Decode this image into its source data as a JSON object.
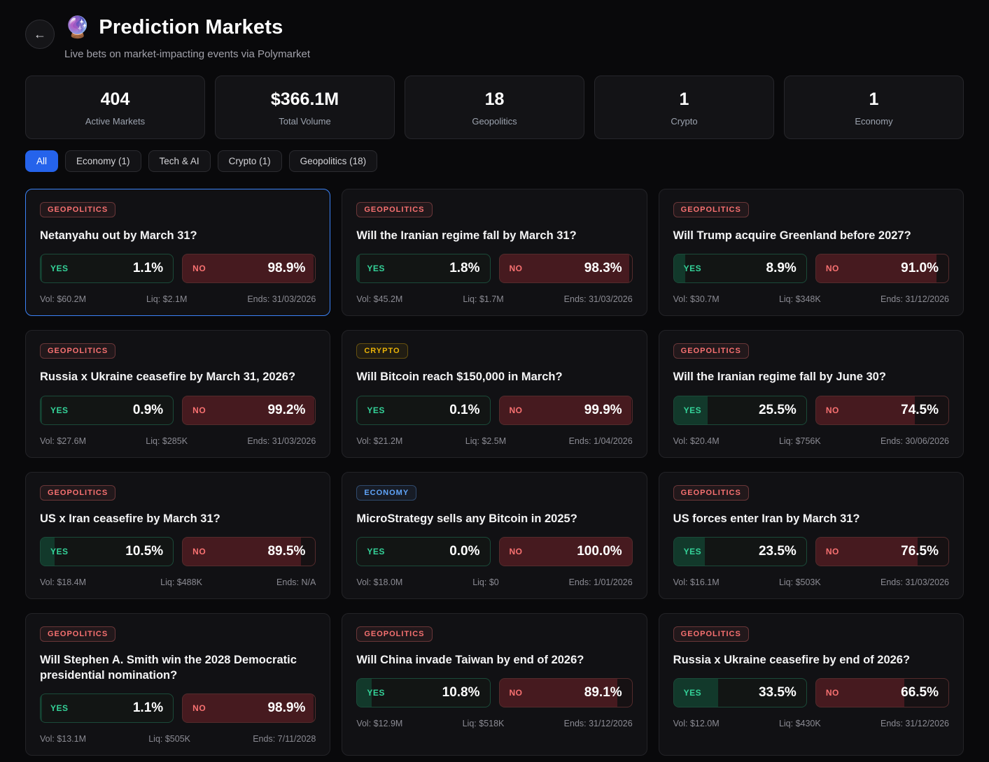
{
  "header": {
    "back_icon": "←",
    "emoji": "🔮",
    "title": "Prediction Markets",
    "subtitle": "Live bets on market-impacting events via Polymarket"
  },
  "stats": [
    {
      "value": "404",
      "label": "Active Markets"
    },
    {
      "value": "$366.1M",
      "label": "Total Volume"
    },
    {
      "value": "18",
      "label": "Geopolitics"
    },
    {
      "value": "1",
      "label": "Crypto"
    },
    {
      "value": "1",
      "label": "Economy"
    }
  ],
  "filters": [
    {
      "label": "All",
      "active": true
    },
    {
      "label": "Economy (1)",
      "active": false
    },
    {
      "label": "Tech & AI",
      "active": false
    },
    {
      "label": "Crypto (1)",
      "active": false
    },
    {
      "label": "Geopolitics (18)",
      "active": false
    }
  ],
  "labels": {
    "yes": "YES",
    "no": "NO"
  },
  "category_colors": {
    "GEOPOLITICS": "#f87171",
    "CRYPTO": "#eab308",
    "ECONOMY": "#60a5fa"
  },
  "accent_colors": {
    "selected_card_border": "#3b82f6",
    "active_filter": "#2563eb",
    "yes": "#34d399",
    "no": "#f87171"
  },
  "markets": [
    {
      "category": "GEOPOLITICS",
      "question": "Netanyahu out by March 31?",
      "yes": "1.1%",
      "no": "98.9%",
      "yes_pct": 1.1,
      "no_pct": 98.9,
      "vol": "Vol: $60.2M",
      "liq": "Liq: $2.1M",
      "ends": "Ends: 31/03/2026",
      "selected": true
    },
    {
      "category": "GEOPOLITICS",
      "question": "Will the Iranian regime fall by March 31?",
      "yes": "1.8%",
      "no": "98.3%",
      "yes_pct": 1.8,
      "no_pct": 98.3,
      "vol": "Vol: $45.2M",
      "liq": "Liq: $1.7M",
      "ends": "Ends: 31/03/2026",
      "selected": false
    },
    {
      "category": "GEOPOLITICS",
      "question": "Will Trump acquire Greenland before 2027?",
      "yes": "8.9%",
      "no": "91.0%",
      "yes_pct": 8.9,
      "no_pct": 91.0,
      "vol": "Vol: $30.7M",
      "liq": "Liq: $348K",
      "ends": "Ends: 31/12/2026",
      "selected": false
    },
    {
      "category": "GEOPOLITICS",
      "question": "Russia x Ukraine ceasefire by March 31, 2026?",
      "yes": "0.9%",
      "no": "99.2%",
      "yes_pct": 0.9,
      "no_pct": 99.2,
      "vol": "Vol: $27.6M",
      "liq": "Liq: $285K",
      "ends": "Ends: 31/03/2026",
      "selected": false
    },
    {
      "category": "CRYPTO",
      "question": "Will Bitcoin reach $150,000 in March?",
      "yes": "0.1%",
      "no": "99.9%",
      "yes_pct": 0.1,
      "no_pct": 99.9,
      "vol": "Vol: $21.2M",
      "liq": "Liq: $2.5M",
      "ends": "Ends: 1/04/2026",
      "selected": false
    },
    {
      "category": "GEOPOLITICS",
      "question": "Will the Iranian regime fall by June 30?",
      "yes": "25.5%",
      "no": "74.5%",
      "yes_pct": 25.5,
      "no_pct": 74.5,
      "vol": "Vol: $20.4M",
      "liq": "Liq: $756K",
      "ends": "Ends: 30/06/2026",
      "selected": false
    },
    {
      "category": "GEOPOLITICS",
      "question": "US x Iran ceasefire by March 31?",
      "yes": "10.5%",
      "no": "89.5%",
      "yes_pct": 10.5,
      "no_pct": 89.5,
      "vol": "Vol: $18.4M",
      "liq": "Liq: $488K",
      "ends": "Ends: N/A",
      "selected": false
    },
    {
      "category": "ECONOMY",
      "question": "MicroStrategy sells any Bitcoin in 2025?",
      "yes": "0.0%",
      "no": "100.0%",
      "yes_pct": 0.0,
      "no_pct": 100.0,
      "vol": "Vol: $18.0M",
      "liq": "Liq: $0",
      "ends": "Ends: 1/01/2026",
      "selected": false
    },
    {
      "category": "GEOPOLITICS",
      "question": "US forces enter Iran by March 31?",
      "yes": "23.5%",
      "no": "76.5%",
      "yes_pct": 23.5,
      "no_pct": 76.5,
      "vol": "Vol: $16.1M",
      "liq": "Liq: $503K",
      "ends": "Ends: 31/03/2026",
      "selected": false
    },
    {
      "category": "GEOPOLITICS",
      "question": "Will Stephen A. Smith win the 2028 Democratic presidential nomination?",
      "yes": "1.1%",
      "no": "98.9%",
      "yes_pct": 1.1,
      "no_pct": 98.9,
      "vol": "Vol: $13.1M",
      "liq": "Liq: $505K",
      "ends": "Ends: 7/11/2028",
      "selected": false
    },
    {
      "category": "GEOPOLITICS",
      "question": "Will China invade Taiwan by end of 2026?",
      "yes": "10.8%",
      "no": "89.1%",
      "yes_pct": 10.8,
      "no_pct": 89.1,
      "vol": "Vol: $12.9M",
      "liq": "Liq: $518K",
      "ends": "Ends: 31/12/2026",
      "selected": false
    },
    {
      "category": "GEOPOLITICS",
      "question": "Russia x Ukraine ceasefire by end of 2026?",
      "yes": "33.5%",
      "no": "66.5%",
      "yes_pct": 33.5,
      "no_pct": 66.5,
      "vol": "Vol: $12.0M",
      "liq": "Liq: $430K",
      "ends": "Ends: 31/12/2026",
      "selected": false
    }
  ]
}
